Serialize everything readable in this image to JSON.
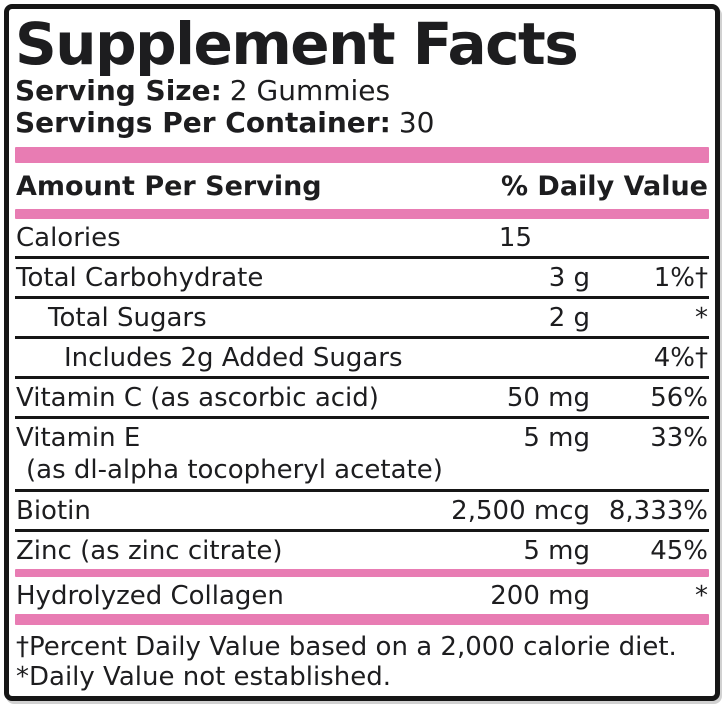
{
  "label": {
    "title": "Supplement Facts",
    "serving_size": {
      "label": "Serving Size:",
      "value": "2 Gummies"
    },
    "servings_per_container": {
      "label": "Servings Per Container:",
      "value": "30"
    },
    "columns": {
      "amount": "Amount Per Serving",
      "dv": "% Daily Value"
    },
    "rows": [
      {
        "name": "Calories",
        "amount": "15",
        "dv": ""
      },
      {
        "name": "Total Carbohydrate",
        "amount": "3 g",
        "dv": "1%†"
      },
      {
        "name": "Total Sugars",
        "amount": "2 g",
        "dv": "*"
      },
      {
        "name": "Includes 2g Added Sugars",
        "amount": "",
        "dv": "4%†"
      },
      {
        "name": "Vitamin C (as ascorbic acid)",
        "amount": "50 mg",
        "dv": "56%"
      },
      {
        "name": "Vitamin E",
        "sub": "(as dl-alpha tocopheryl acetate)",
        "amount": "5 mg",
        "dv": "33%"
      },
      {
        "name": "Biotin",
        "amount": "2,500 mcg",
        "dv": "8,333%"
      },
      {
        "name": "Zinc (as zinc citrate)",
        "amount": "5 mg",
        "dv": "45%"
      },
      {
        "name": "Hydrolyzed Collagen",
        "amount": "200 mg",
        "dv": "*"
      }
    ],
    "footnotes": [
      "†Percent Daily Value based on a 2,000 calorie diet.",
      "*Daily Value not established."
    ],
    "colors": {
      "accent_pink": "#e87cb3",
      "text": "#1d1d1f"
    }
  }
}
